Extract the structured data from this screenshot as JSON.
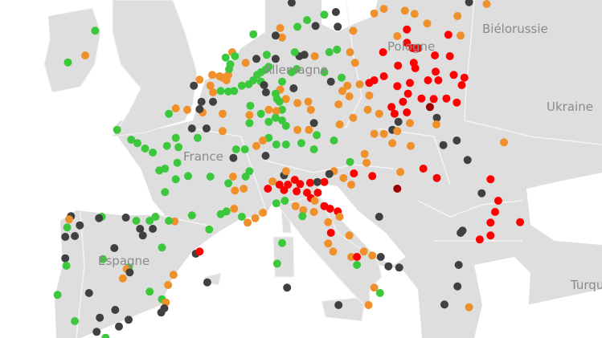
{
  "map": {
    "labels": {
      "belarus": "Biélorussie",
      "poland": "Pologne",
      "ukraine": "Ukraine",
      "germany": "Allemagne",
      "france": "France",
      "spain": "Espagne",
      "turkey": "Turquie"
    },
    "land_color": "#dedede",
    "sea_color": "#ffffff",
    "border_color": "#f4f4f4"
  },
  "marker_colors": {
    "green": "#3cc83c",
    "orange": "#f0902a",
    "red": "#ff0000",
    "dark_red": "#9b0000",
    "dark_gray": "#404040"
  }
}
